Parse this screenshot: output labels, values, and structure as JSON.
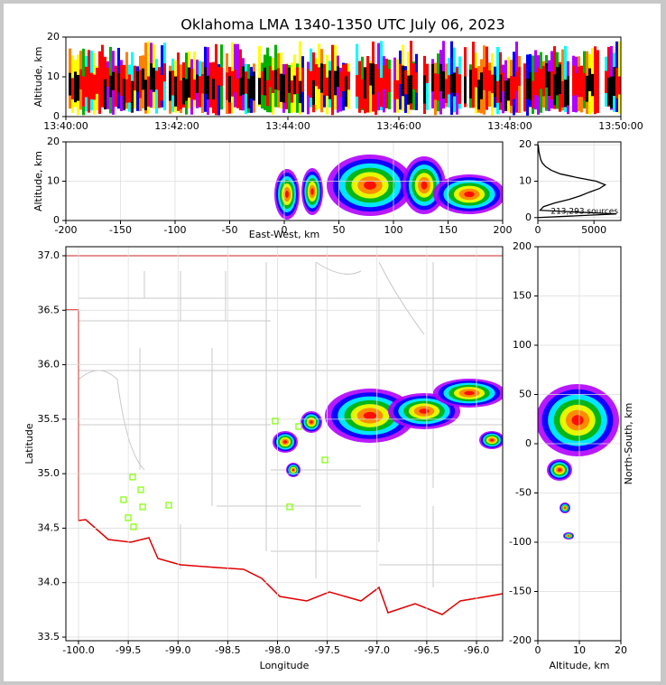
{
  "title": "Oklahoma LMA 1340-1350 UTC July 06, 2023",
  "chart_data": [
    {
      "type": "time-height",
      "ylabel": "Altitude, km",
      "xlim": [
        "13:40:00",
        "13:50:00"
      ],
      "xticks": [
        "13:40:00",
        "13:42:00",
        "13:44:00",
        "13:46:00",
        "13:48:00",
        "13:50:00"
      ],
      "ylim": [
        0,
        20
      ],
      "yticks": [
        0,
        10,
        20
      ],
      "grid": false
    },
    {
      "type": "density",
      "xlabel": "East-West, km",
      "ylabel": "Altitude, km",
      "xlim": [
        -200,
        200
      ],
      "xticks": [
        -200,
        -150,
        -100,
        -50,
        0,
        50,
        100,
        150,
        200
      ],
      "ylim": [
        0,
        20
      ],
      "yticks": [
        0,
        10,
        20
      ],
      "grid": true
    },
    {
      "type": "line",
      "orientation": "horizontal",
      "annotation": "213,293 sources",
      "x": [
        0,
        1,
        2,
        3,
        4,
        5,
        6,
        7,
        8,
        9,
        10,
        11,
        12,
        13,
        14,
        15,
        16,
        18,
        20
      ],
      "values": [
        0,
        7000,
        200,
        500,
        1500,
        2800,
        3800,
        4600,
        5500,
        6000,
        5200,
        3500,
        2000,
        1200,
        700,
        400,
        250,
        100,
        30
      ],
      "color": "#000000",
      "xlim": [
        0,
        7400
      ],
      "xticks": [
        0,
        5000
      ],
      "ylim": [
        -0.8,
        20.8
      ],
      "yticks": [
        0,
        10,
        20
      ],
      "grid": true
    },
    {
      "type": "map",
      "xlabel": "Longitude",
      "ylabel": "Latitude",
      "xlim": [
        -100.127,
        -95.737
      ],
      "xticks": [
        {
          "value": -100,
          "label": "-100.0"
        },
        {
          "value": -99.5,
          "label": "-99.5"
        },
        {
          "value": -99,
          "label": "-99.0"
        },
        {
          "value": -98.5,
          "label": "-98.5"
        },
        {
          "value": -98,
          "label": "-98.0"
        },
        {
          "value": -97.5,
          "label": "-97.5"
        },
        {
          "value": -97,
          "label": "-97.0"
        },
        {
          "value": -96.5,
          "label": "-96.5"
        },
        {
          "value": -96,
          "label": "-96.0"
        }
      ],
      "ylim": [
        33.467,
        37.083
      ],
      "yticks": [
        {
          "value": 33.5,
          "label": "33.5"
        },
        {
          "value": 34,
          "label": "34.0"
        },
        {
          "value": 34.5,
          "label": "34.5"
        },
        {
          "value": 35,
          "label": "35.0"
        },
        {
          "value": 35.5,
          "label": "35.5"
        },
        {
          "value": 36,
          "label": "36.0"
        },
        {
          "value": 36.5,
          "label": "36.5"
        },
        {
          "value": 37,
          "label": "37.0"
        }
      ],
      "grid": true,
      "stations": {
        "color": "#7fff00",
        "x": [
          -99.456,
          -99.547,
          -99.374,
          -99.356,
          -99.501,
          -99.447,
          -99.093,
          -98.023,
          -97.787,
          -97.524,
          -97.878
        ],
        "values": [
          34.969,
          34.761,
          34.852,
          34.695,
          34.595,
          34.512,
          34.711,
          35.483,
          35.433,
          35.126,
          34.695
        ]
      }
    },
    {
      "type": "density",
      "xlabel": "Altitude, km",
      "ylabel": "North-South, km",
      "ylabel_position": "right",
      "xlim": [
        0,
        20
      ],
      "xticks": [
        0,
        10,
        20
      ],
      "ylim": [
        -200,
        200
      ],
      "yticks": [
        -200,
        -150,
        -100,
        -50,
        0,
        50,
        100,
        150,
        200
      ],
      "grid": true
    }
  ]
}
